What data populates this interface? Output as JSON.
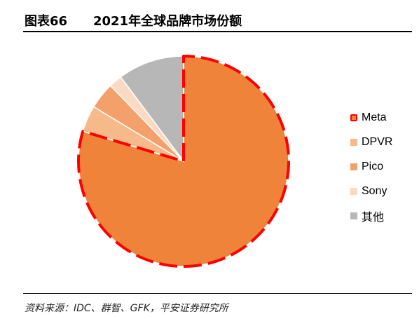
{
  "header": {
    "figure_number": "图表66",
    "title": "2021年全球品牌市场份额"
  },
  "chart_data": {
    "type": "pie",
    "title": "2021年全球品牌市场份额",
    "slices": [
      {
        "label": "Meta",
        "value": 78,
        "color": "#F0833A",
        "highlight": true
      },
      {
        "label": "DPVR",
        "value": 4,
        "color": "#F6B98A"
      },
      {
        "label": "Pico",
        "value": 4,
        "color": "#F4A06B"
      },
      {
        "label": "Sony",
        "value": 2,
        "color": "#FBDAC3"
      },
      {
        "label": "其他",
        "value": 10,
        "color": "#B7B7B7"
      }
    ],
    "highlight_color": "#FF0000",
    "legend": "right",
    "start_angle_deg": 0,
    "direction": "clockwise"
  },
  "footer": {
    "source": "资料来源：IDC、群智、GFK，平安证券研究所"
  }
}
